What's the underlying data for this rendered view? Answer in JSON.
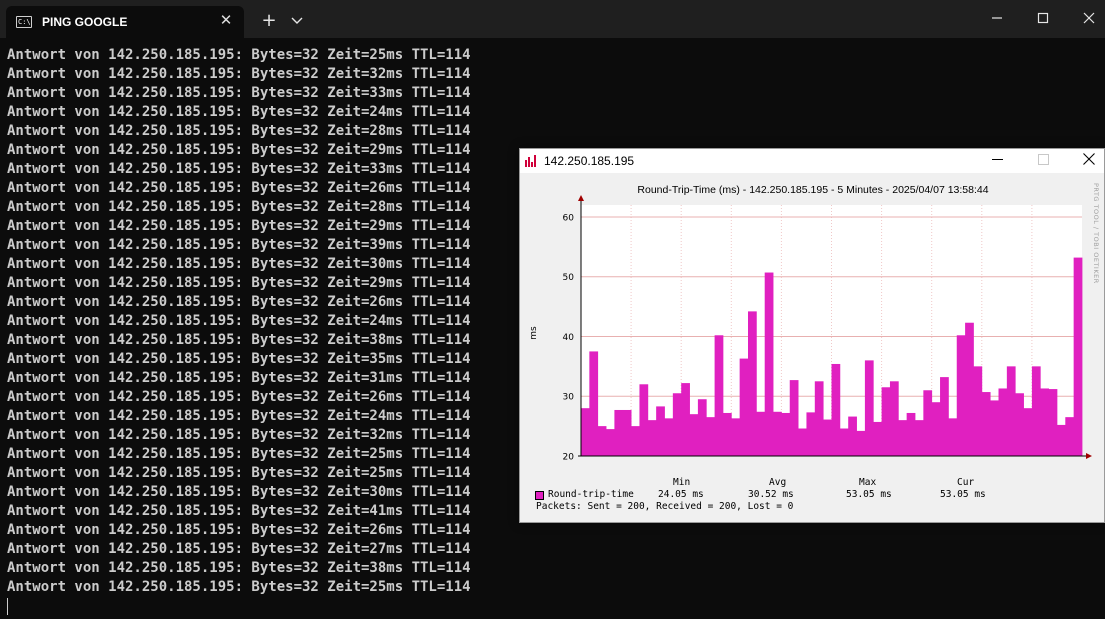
{
  "terminal": {
    "tab_title": "PING GOOGLE",
    "tab_icon": "cmd-icon",
    "close_tab": "✕",
    "new_tab": "+",
    "dropdown": "⌵",
    "window_controls": {
      "minimize": "—",
      "maximize": "☐",
      "close": "✕"
    },
    "lines": [
      "Antwort von 142.250.185.195: Bytes=32 Zeit=25ms TTL=114",
      "Antwort von 142.250.185.195: Bytes=32 Zeit=32ms TTL=114",
      "Antwort von 142.250.185.195: Bytes=32 Zeit=33ms TTL=114",
      "Antwort von 142.250.185.195: Bytes=32 Zeit=24ms TTL=114",
      "Antwort von 142.250.185.195: Bytes=32 Zeit=28ms TTL=114",
      "Antwort von 142.250.185.195: Bytes=32 Zeit=29ms TTL=114",
      "Antwort von 142.250.185.195: Bytes=32 Zeit=33ms TTL=114",
      "Antwort von 142.250.185.195: Bytes=32 Zeit=26ms TTL=114",
      "Antwort von 142.250.185.195: Bytes=32 Zeit=28ms TTL=114",
      "Antwort von 142.250.185.195: Bytes=32 Zeit=29ms TTL=114",
      "Antwort von 142.250.185.195: Bytes=32 Zeit=39ms TTL=114",
      "Antwort von 142.250.185.195: Bytes=32 Zeit=30ms TTL=114",
      "Antwort von 142.250.185.195: Bytes=32 Zeit=29ms TTL=114",
      "Antwort von 142.250.185.195: Bytes=32 Zeit=26ms TTL=114",
      "Antwort von 142.250.185.195: Bytes=32 Zeit=24ms TTL=114",
      "Antwort von 142.250.185.195: Bytes=32 Zeit=38ms TTL=114",
      "Antwort von 142.250.185.195: Bytes=32 Zeit=35ms TTL=114",
      "Antwort von 142.250.185.195: Bytes=32 Zeit=31ms TTL=114",
      "Antwort von 142.250.185.195: Bytes=32 Zeit=26ms TTL=114",
      "Antwort von 142.250.185.195: Bytes=32 Zeit=24ms TTL=114",
      "Antwort von 142.250.185.195: Bytes=32 Zeit=32ms TTL=114",
      "Antwort von 142.250.185.195: Bytes=32 Zeit=25ms TTL=114",
      "Antwort von 142.250.185.195: Bytes=32 Zeit=25ms TTL=114",
      "Antwort von 142.250.185.195: Bytes=32 Zeit=30ms TTL=114",
      "Antwort von 142.250.185.195: Bytes=32 Zeit=41ms TTL=114",
      "Antwort von 142.250.185.195: Bytes=32 Zeit=26ms TTL=114",
      "Antwort von 142.250.185.195: Bytes=32 Zeit=27ms TTL=114",
      "Antwort von 142.250.185.195: Bytes=32 Zeit=38ms TTL=114",
      "Antwort von 142.250.185.195: Bytes=32 Zeit=25ms TTL=114"
    ]
  },
  "pingtool": {
    "window_title": "142.250.185.195",
    "window_controls": {
      "minimize": "—",
      "maximize": "☐",
      "close": "✕"
    },
    "watermark": "PRTG TOOL / TOBI OETIKER",
    "stats": {
      "headers": [
        "Min",
        "Avg",
        "Max",
        "Cur"
      ],
      "series_label": "Round-trip-time",
      "values": [
        "24.05 ms",
        "30.52 ms",
        "53.05 ms",
        "53.05 ms"
      ],
      "packets": "Packets: Sent = 200, Received = 200, Lost = 0"
    }
  },
  "chart_data": {
    "type": "area",
    "title": "Round-Trip-Time (ms) - 142.250.185.195 - 5 Minutes - 2025/04/07 13:58:44",
    "ylabel": "ms",
    "xlabel": "",
    "ylim": [
      20,
      62
    ],
    "yticks": [
      20,
      30,
      40,
      50,
      60
    ],
    "grid": true,
    "color": "#e020c0",
    "series": [
      {
        "name": "Round-trip-time",
        "values": [
          28,
          37.5,
          25,
          24.5,
          27.7,
          27.7,
          25,
          32,
          26,
          28.3,
          26.3,
          30.5,
          32.2,
          27,
          29.5,
          26.5,
          40.2,
          27.2,
          26.3,
          36.3,
          44.2,
          27.4,
          50.7,
          27.4,
          27.2,
          32.7,
          24.6,
          27.3,
          32.5,
          26.1,
          35.4,
          24.6,
          26.6,
          24.2,
          36,
          25.7,
          31.5,
          32.5,
          26,
          27.2,
          26,
          31,
          29,
          33.2,
          26.3,
          40.2,
          42.3,
          35,
          30.7,
          29.3,
          31.3,
          35,
          30.5,
          28,
          35,
          31.3,
          31.2,
          25.2,
          26.5,
          53.2
        ]
      }
    ]
  }
}
